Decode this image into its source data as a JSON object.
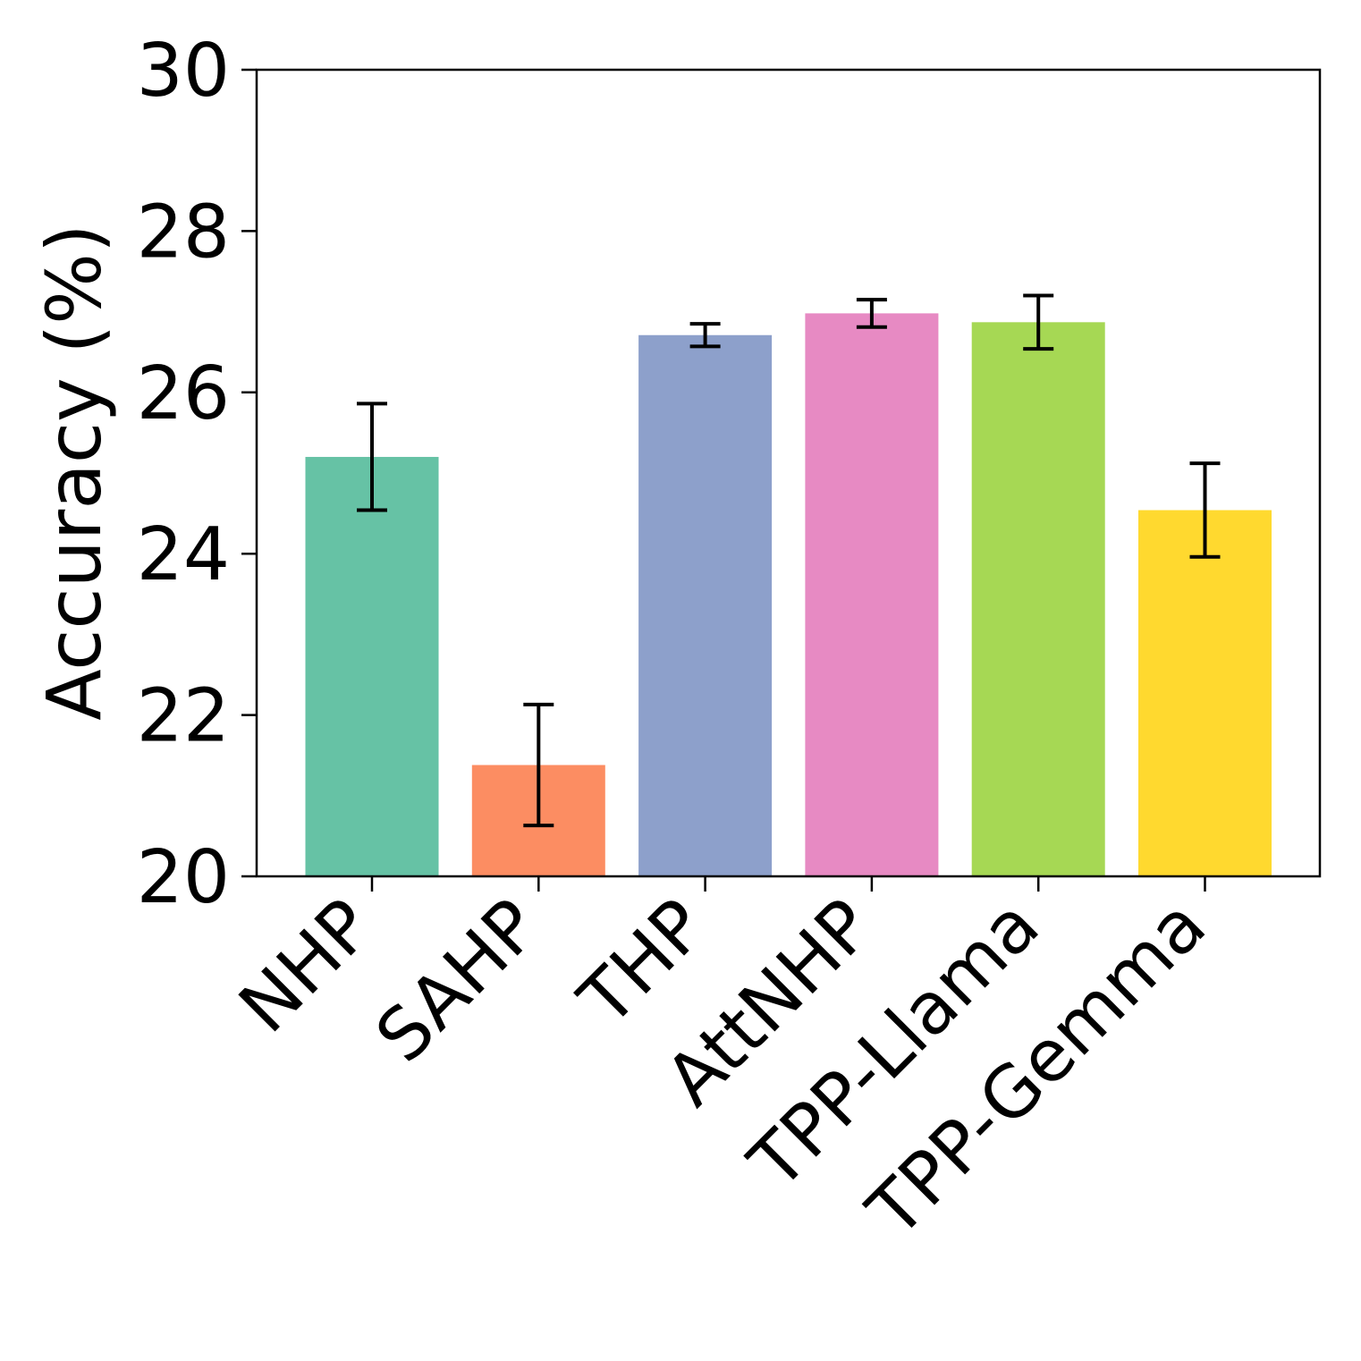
{
  "chart_data": {
    "type": "bar",
    "categories": [
      "NHP",
      "SAHP",
      "THP",
      "AttNHP",
      "TPP-Llama",
      "TPP-Gemma"
    ],
    "values": [
      25.2,
      21.38,
      26.71,
      26.98,
      26.87,
      24.54
    ],
    "error": [
      0.66,
      0.75,
      0.14,
      0.17,
      0.33,
      0.58
    ],
    "colors": [
      "#66c2a5",
      "#fc8d62",
      "#8da0cb",
      "#e78ac3",
      "#a6d854",
      "#ffd92f"
    ],
    "xlabel": "",
    "ylabel": "Accuracy (%)",
    "ylim": [
      20,
      30
    ],
    "yticks": [
      20,
      22,
      24,
      26,
      28,
      30
    ],
    "grid": false,
    "legend": "none"
  }
}
